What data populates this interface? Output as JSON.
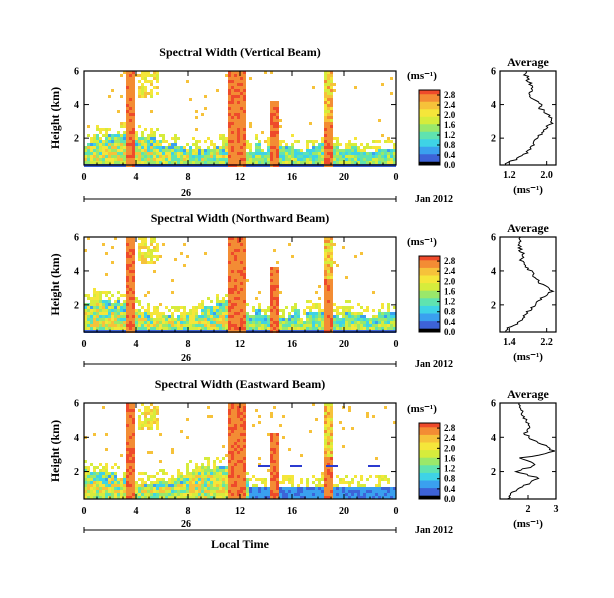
{
  "chart_data": [
    {
      "type": "heatmap",
      "title": "Spectral Width (Vertical Beam)",
      "ylabel": "Height (km)",
      "xlabel": "",
      "x_ticks": [
        "0",
        "4",
        "8",
        "12",
        "16",
        "20",
        "0"
      ],
      "y_ticks": [
        "2",
        "4",
        "6"
      ],
      "date_tick": "26",
      "date_label": "Jan 2012",
      "colorbar": {
        "unit": "(ms⁻¹)",
        "ticks": [
          "0.0",
          "0.4",
          "0.8",
          "1.2",
          "1.6",
          "2.0",
          "2.4",
          "2.8"
        ],
        "range": [
          0,
          3.0
        ]
      },
      "profile": {
        "title": "Average",
        "xlabel": "(ms⁻¹)",
        "x_ticks": [
          "1.2",
          "2.0"
        ],
        "y_ticks": [
          "2",
          "4",
          "6"
        ],
        "xlim": [
          1.0,
          2.2
        ],
        "heights": [
          0.5,
          0.8,
          1.2,
          1.6,
          2.0,
          2.4,
          2.8,
          3.0,
          3.2,
          3.5,
          3.8,
          4.0,
          4.3,
          4.6,
          5.0,
          5.4,
          5.8
        ],
        "values": [
          1.15,
          1.4,
          1.6,
          1.72,
          1.8,
          1.9,
          2.05,
          2.15,
          2.1,
          2.0,
          1.85,
          1.9,
          1.75,
          1.6,
          1.7,
          1.6,
          1.55
        ]
      }
    },
    {
      "type": "heatmap",
      "title": "Spectral Width (Northward Beam)",
      "ylabel": "Height (km)",
      "xlabel": "",
      "x_ticks": [
        "0",
        "4",
        "8",
        "12",
        "16",
        "20",
        "0"
      ],
      "y_ticks": [
        "2",
        "4",
        "6"
      ],
      "date_tick": "26",
      "date_label": "Jan 2012",
      "colorbar": {
        "unit": "(ms⁻¹)",
        "ticks": [
          "0.0",
          "0.4",
          "0.8",
          "1.2",
          "1.6",
          "2.0",
          "2.4",
          "2.8"
        ],
        "range": [
          0,
          3.0
        ]
      },
      "profile": {
        "title": "Average",
        "xlabel": "(ms⁻¹)",
        "x_ticks": [
          "1.4",
          "2.2"
        ],
        "y_ticks": [
          "2",
          "4",
          "6"
        ],
        "xlim": [
          1.2,
          2.4
        ],
        "heights": [
          0.5,
          0.8,
          1.2,
          1.6,
          2.0,
          2.4,
          2.8,
          3.0,
          3.2,
          3.5,
          3.8,
          4.0,
          4.3,
          4.6,
          5.0,
          5.4,
          5.8
        ],
        "values": [
          1.3,
          1.5,
          1.7,
          1.8,
          1.95,
          2.1,
          2.3,
          2.25,
          2.1,
          2.0,
          1.9,
          1.85,
          1.75,
          1.65,
          1.7,
          1.6,
          1.65
        ]
      }
    },
    {
      "type": "heatmap",
      "title": "Spectral Width (Eastward Beam)",
      "ylabel": "Height (km)",
      "xlabel": "Local Time",
      "x_ticks": [
        "0",
        "4",
        "8",
        "12",
        "16",
        "20",
        "0"
      ],
      "y_ticks": [
        "2",
        "4",
        "6"
      ],
      "date_tick": "26",
      "date_label": "Jan 2012",
      "colorbar": {
        "unit": "(ms⁻¹)",
        "ticks": [
          "0.0",
          "0.4",
          "0.8",
          "1.2",
          "1.6",
          "2.0",
          "2.4",
          "2.8"
        ],
        "range": [
          0,
          3.0
        ]
      },
      "profile": {
        "title": "Average",
        "xlabel": "(ms⁻¹)",
        "x_ticks": [
          "2",
          "3"
        ],
        "y_ticks": [
          "2",
          "4",
          "6"
        ],
        "xlim": [
          1.0,
          3.0
        ],
        "heights": [
          0.5,
          0.8,
          1.2,
          1.6,
          2.0,
          2.4,
          2.8,
          3.0,
          3.2,
          3.5,
          3.8,
          4.0,
          4.3,
          4.6,
          5.0,
          5.4,
          5.8
        ],
        "values": [
          1.3,
          1.5,
          1.9,
          2.4,
          1.6,
          2.3,
          1.7,
          2.6,
          2.9,
          2.6,
          2.2,
          2.0,
          1.9,
          2.1,
          1.9,
          1.8,
          1.7
        ]
      }
    }
  ]
}
